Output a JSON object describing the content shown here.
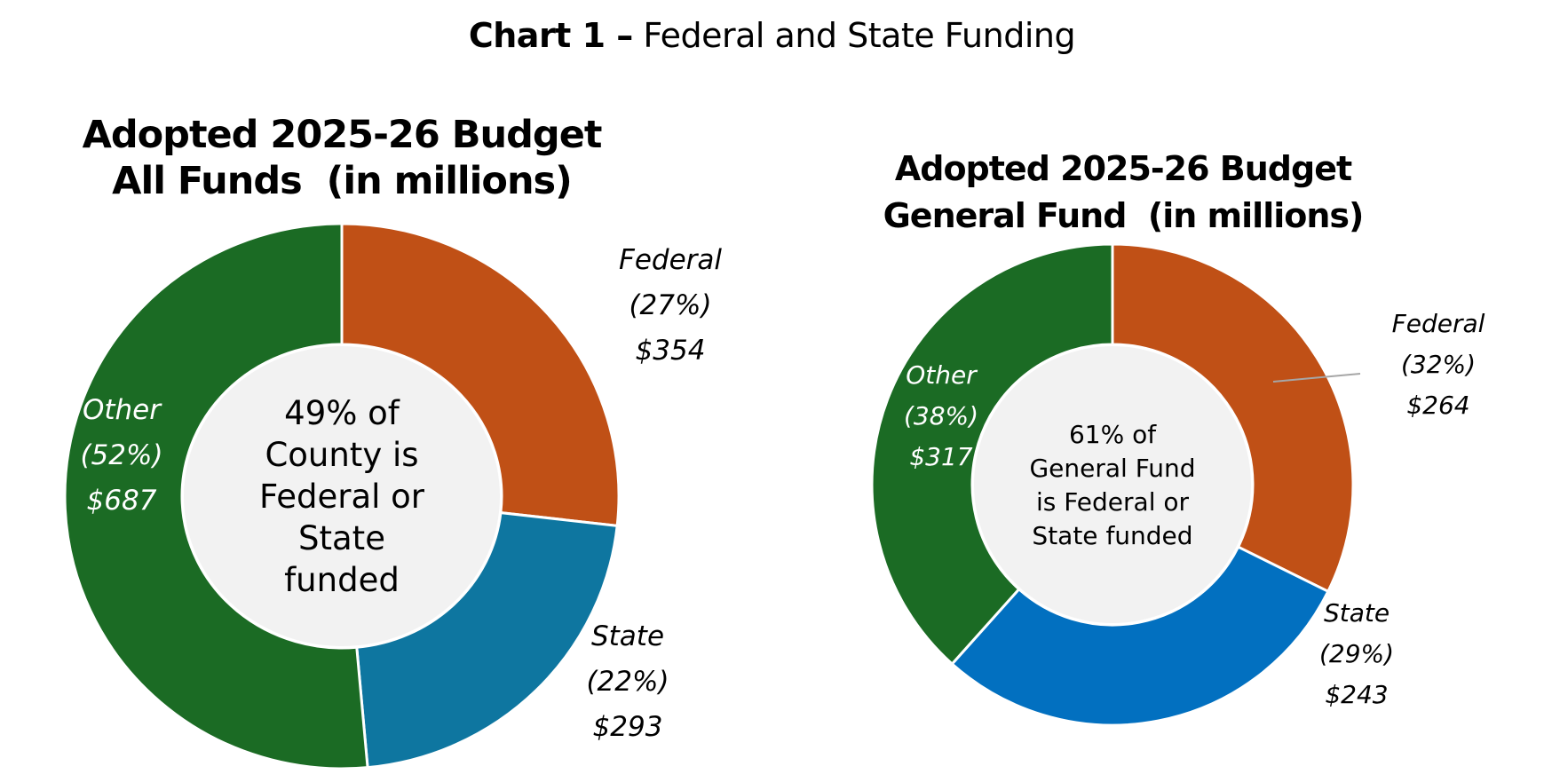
{
  "header": {
    "title_bold": "Chart 1 –",
    "title_rest": "Federal and State Funding"
  },
  "colors": {
    "federal": "#c05016",
    "state_all_funds": "#0e76a0",
    "state_general_fund": "#0270c0",
    "other": "#1b6b24",
    "center": "#f2f2f2",
    "separator": "#ffffff",
    "leader_line": "#a6a6a6"
  },
  "chart_data": [
    {
      "type": "pie",
      "variant": "donut",
      "title": "Adopted 2025-26 Budget All Funds (in millions)",
      "title_lines": [
        "Adopted 2025-26 Budget",
        "All Funds  (in millions)"
      ],
      "units": "$ millions",
      "center_text": [
        "49% of",
        "County is",
        "Federal or",
        "State",
        "funded"
      ],
      "slices": [
        {
          "name": "Federal",
          "percent": 27,
          "value": 354,
          "percent_label": "(27%)",
          "value_label": "$354",
          "color_key": "federal"
        },
        {
          "name": "State",
          "percent": 22,
          "value": 293,
          "percent_label": "(22%)",
          "value_label": "$293",
          "color_key": "state_all_funds"
        },
        {
          "name": "Other",
          "percent": 52,
          "value": 687,
          "percent_label": "(52%)",
          "value_label": "$687",
          "color_key": "other"
        }
      ],
      "start_angle": "12 o'clock",
      "direction": "clockwise",
      "legend": "none"
    },
    {
      "type": "pie",
      "variant": "donut",
      "title": "Adopted 2025-26 Budget General Fund (in millions)",
      "title_lines": [
        "Adopted 2025-26 Budget",
        "General Fund  (in millions)"
      ],
      "units": "$ millions",
      "center_text": [
        "61% of",
        "General Fund",
        "is Federal or",
        "State funded"
      ],
      "slices": [
        {
          "name": "Federal",
          "percent": 32,
          "value": 264,
          "percent_label": "(32%)",
          "value_label": "$264",
          "color_key": "federal"
        },
        {
          "name": "State",
          "percent": 29,
          "value": 243,
          "percent_label": "(29%)",
          "value_label": "$243",
          "color_key": "state_general_fund"
        },
        {
          "name": "Other",
          "percent": 38,
          "value": 317,
          "percent_label": "(38%)",
          "value_label": "$317",
          "color_key": "other"
        }
      ],
      "start_angle": "12 o'clock",
      "direction": "clockwise",
      "legend": "none"
    }
  ]
}
